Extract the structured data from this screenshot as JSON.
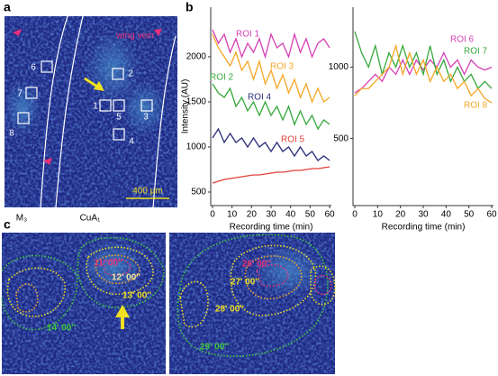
{
  "panel_labels": [
    "a",
    "b",
    "c"
  ],
  "image_a": {
    "roi_numbers": [
      "1",
      "2",
      "3",
      "4",
      "5",
      "6",
      "7",
      "8"
    ],
    "wing_vein": "wing vein",
    "scale_bar": "400 µm",
    "vein_labels": [
      "M₃",
      "CuA₁"
    ]
  },
  "chart_data": [
    {
      "type": "line",
      "y_label": "Intensity (AU)",
      "x_label": "Recording time (min)",
      "x": [
        0,
        3,
        6,
        9,
        12,
        15,
        18,
        21,
        24,
        27,
        30,
        33,
        36,
        39,
        42,
        45,
        48,
        51,
        54,
        57,
        60
      ],
      "xlim": [
        0,
        60
      ],
      "xticks": [
        0,
        10,
        20,
        30,
        40,
        50,
        60
      ],
      "ylim": [
        350,
        2550
      ],
      "yticks": [
        500,
        1000,
        1500,
        2000
      ],
      "series": [
        {
          "name": "ROI 1",
          "color": "#d63fb5",
          "values": [
            2300,
            2150,
            2250,
            2050,
            2200,
            2000,
            2150,
            2050,
            2200,
            2000,
            2250,
            2100,
            2150,
            2000,
            2250,
            2050,
            2200,
            2000,
            2150,
            2200,
            2100
          ]
        },
        {
          "name": "ROI 2",
          "color": "#34a83a",
          "values": [
            1700,
            1600,
            1550,
            1650,
            1450,
            1550,
            1400,
            1500,
            1350,
            1500,
            1350,
            1450,
            1300,
            1450,
            1250,
            1400,
            1250,
            1350,
            1200,
            1300,
            1250
          ]
        },
        {
          "name": "ROI 3",
          "color": "#f5a623",
          "values": [
            2250,
            2100,
            2000,
            1900,
            2050,
            1850,
            1950,
            1750,
            1950,
            1700,
            1850,
            1650,
            1800,
            1600,
            1750,
            1550,
            1700,
            1500,
            1650,
            1500,
            1550
          ]
        },
        {
          "name": "ROI 4",
          "color": "#2b2d7a",
          "values": [
            1100,
            1200,
            1050,
            1150,
            1050,
            1100,
            1000,
            1100,
            1000,
            1050,
            950,
            1050,
            950,
            1000,
            900,
            1000,
            900,
            950,
            850,
            900,
            850
          ]
        },
        {
          "name": "ROI 5",
          "color": "#e0403a",
          "values": [
            600,
            620,
            640,
            650,
            660,
            670,
            680,
            690,
            690,
            700,
            710,
            720,
            720,
            730,
            740,
            740,
            750,
            760,
            760,
            770,
            780
          ]
        }
      ]
    },
    {
      "type": "line",
      "x_label": "Recording time (min)",
      "x": [
        0,
        3,
        6,
        9,
        12,
        15,
        18,
        21,
        24,
        27,
        30,
        33,
        36,
        39,
        42,
        45,
        48,
        51,
        54,
        57,
        60
      ],
      "xlim": [
        0,
        60
      ],
      "xticks": [
        0,
        10,
        20,
        30,
        40,
        50,
        60
      ],
      "ylim": [
        30,
        1420
      ],
      "yticks": [
        500,
        1000
      ],
      "series": [
        {
          "name": "ROI 6",
          "color": "#d63fb5",
          "values": [
            820,
            850,
            900,
            950,
            900,
            1000,
            950,
            1050,
            950,
            1050,
            980,
            1050,
            1000,
            1100,
            1000,
            1050,
            950,
            1050,
            1000,
            980,
            1000
          ]
        },
        {
          "name": "ROI 7",
          "color": "#34a83a",
          "values": [
            1250,
            1100,
            1000,
            1150,
            950,
            1100,
            1000,
            1150,
            1000,
            1100,
            950,
            1150,
            950,
            1050,
            900,
            1000,
            900,
            950,
            850,
            900,
            850
          ]
        },
        {
          "name": "ROI 8",
          "color": "#f5a623",
          "values": [
            800,
            850,
            850,
            900,
            950,
            1000,
            1150,
            950,
            1100,
            950,
            1050,
            900,
            1000,
            900,
            950,
            850,
            900,
            800,
            850,
            780,
            750
          ]
        }
      ]
    }
  ],
  "image_c": {
    "left_times": [
      "11' 00''",
      "12' 00''",
      "13' 00''",
      "14' 00''"
    ],
    "right_times": [
      "26' 00''",
      "27' 00''",
      "28' 00''",
      "29' 00''"
    ]
  }
}
